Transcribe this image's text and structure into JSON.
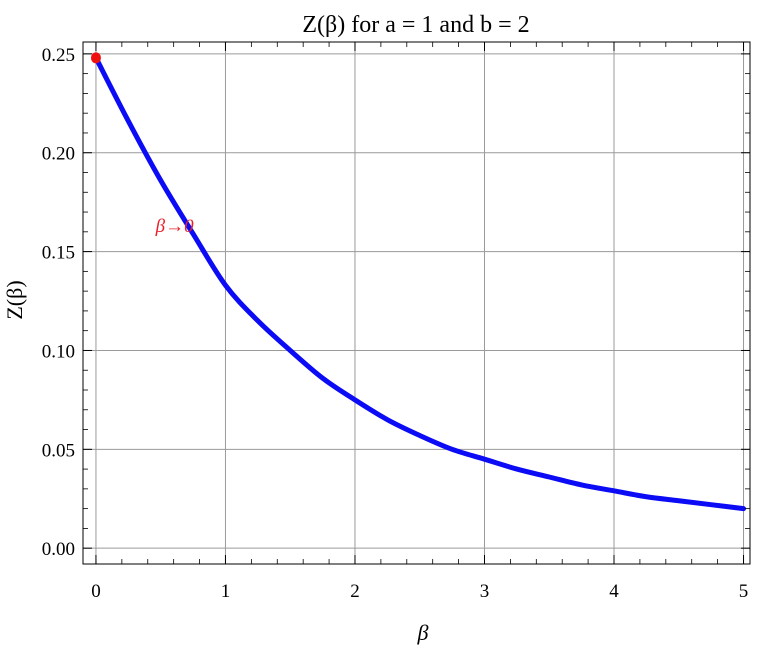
{
  "chart_data": {
    "type": "line",
    "title": "Z(β) for a = 1 and b = 2",
    "xlabel": "β",
    "ylabel": "Z(β)",
    "xlim": [
      -0.1,
      5.05
    ],
    "ylim": [
      -0.008,
      0.256
    ],
    "x_ticks": [
      0,
      1,
      2,
      3,
      4,
      5
    ],
    "x_tick_labels": [
      "0",
      "1",
      "2",
      "3",
      "4",
      "5"
    ],
    "y_ticks": [
      0.0,
      0.05,
      0.1,
      0.15,
      0.2,
      0.25
    ],
    "y_tick_labels": [
      "0.00",
      "0.05",
      "0.10",
      "0.15",
      "0.20",
      "0.25"
    ],
    "grid": true,
    "series": [
      {
        "color": "#0b0bf5",
        "x": [
          0,
          0.25,
          0.5,
          0.75,
          1,
          1.25,
          1.5,
          1.75,
          2,
          2.25,
          2.5,
          2.75,
          3,
          3.25,
          3.5,
          3.75,
          4,
          4.25,
          4.5,
          4.75,
          5
        ],
        "y": [
          0.248,
          0.216,
          0.186,
          0.159,
          0.133,
          0.115,
          0.1,
          0.086,
          0.075,
          0.065,
          0.057,
          0.05,
          0.045,
          0.04,
          0.036,
          0.032,
          0.029,
          0.026,
          0.024,
          0.022,
          0.02
        ]
      }
    ],
    "points": [
      {
        "x": 0,
        "y": 0.248,
        "color": "#ee1111"
      }
    ],
    "annotations": [
      {
        "text": "β→0",
        "x": 0.6,
        "y": 0.17,
        "color": "#e8202a"
      }
    ]
  }
}
